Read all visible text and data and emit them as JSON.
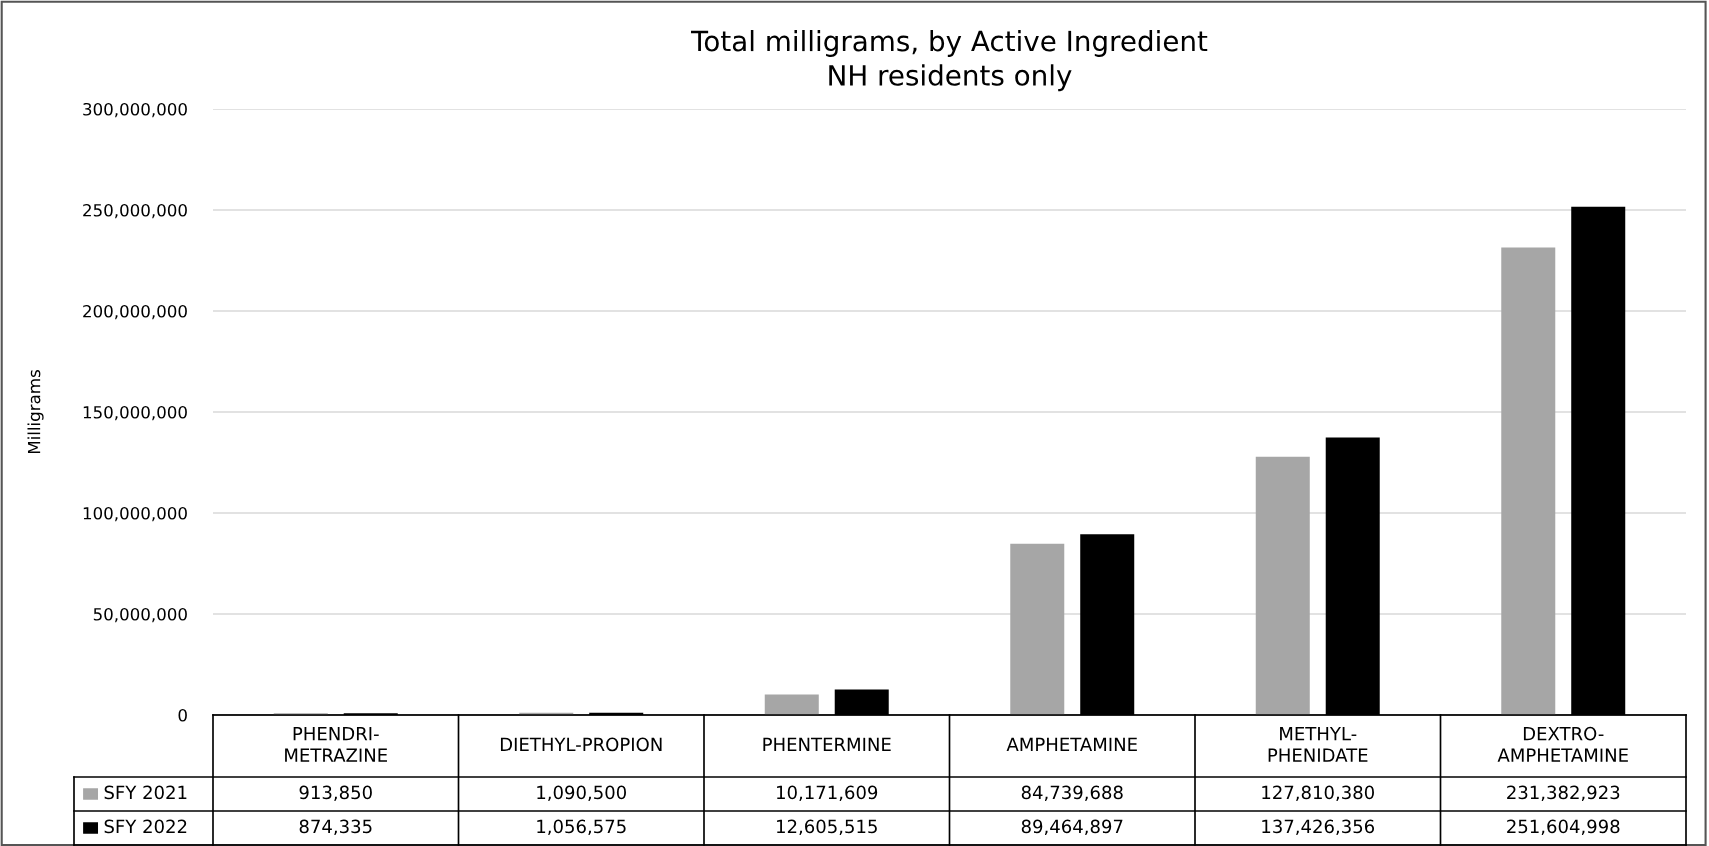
{
  "chart_data": {
    "type": "bar",
    "title": "Total milligrams, by Active Ingredient\nNH residents only",
    "ylabel": "Milligrams",
    "categories": [
      "PHENDRI-\nMETRAZINE",
      "DIETHYL-PROPION",
      "PHENTERMINE",
      "AMPHETAMINE",
      "METHYL-\nPHENIDATE",
      "DEXTRO-\nAMPHETAMINE"
    ],
    "series": [
      {
        "name": "SFY 2021",
        "color": "#a6a6a6",
        "values": [
          913850,
          1090500,
          10171609,
          84739688,
          127810380,
          231382923
        ],
        "value_labels": [
          "913,850",
          "1,090,500",
          "10,171,609",
          "84,739,688",
          "127,810,380",
          "231,382,923"
        ]
      },
      {
        "name": "SFY 2022",
        "color": "#000000",
        "values": [
          874335,
          1056575,
          12605515,
          89464897,
          137426356,
          251604998
        ],
        "value_labels": [
          "874,335",
          "1,056,575",
          "12,605,515",
          "89,464,897",
          "137,426,356",
          "251,604,998"
        ]
      }
    ],
    "ylim": [
      0,
      300000000
    ],
    "yticks": [
      {
        "value": 0,
        "label": "0"
      },
      {
        "value": 50000000,
        "label": "50,000,000"
      },
      {
        "value": 100000000,
        "label": "100,000,000"
      },
      {
        "value": 150000000,
        "label": "150,000,000"
      },
      {
        "value": 200000000,
        "label": "200,000,000"
      },
      {
        "value": 250000000,
        "label": "250,000,000"
      },
      {
        "value": 300000000,
        "label": "300,000,000"
      }
    ],
    "grid": "y",
    "legend": "bottom left"
  }
}
